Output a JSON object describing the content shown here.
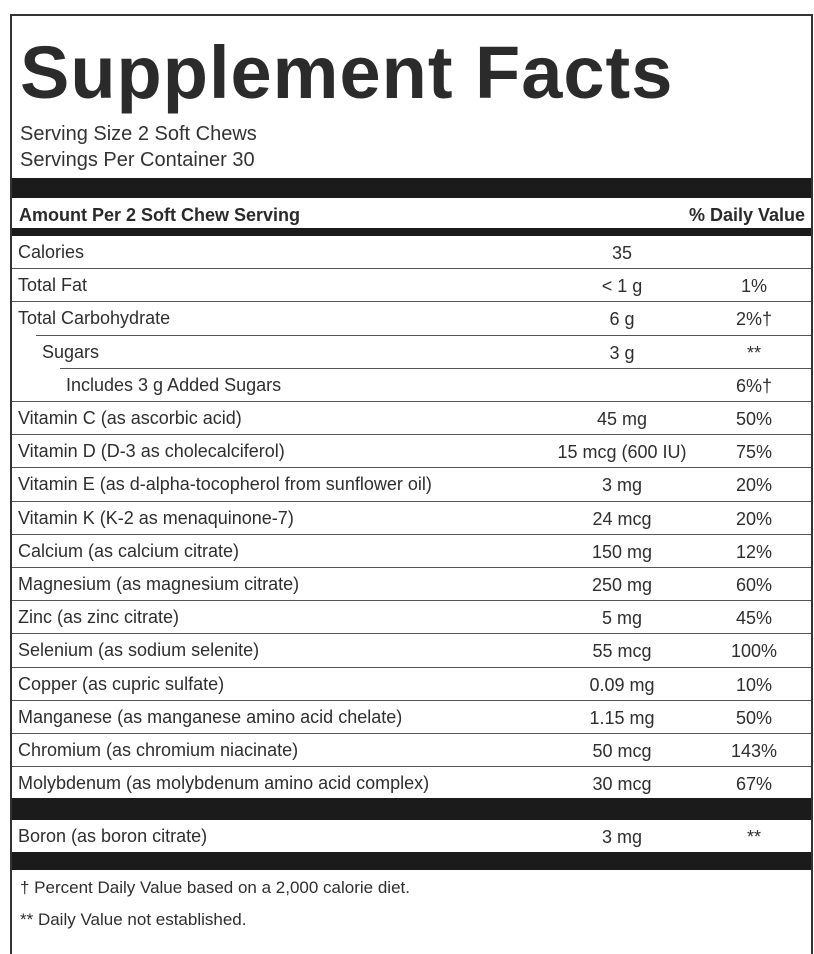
{
  "title": "Supplement Facts",
  "serving_size": "Serving Size 2 Soft Chews",
  "servings_per_container": "Servings Per Container 30",
  "header": {
    "left": "Amount Per 2 Soft Chew Serving",
    "right": "% Daily Value"
  },
  "rows": [
    {
      "name": "Calories",
      "amount": "35",
      "dv": ""
    },
    {
      "name": "Total Fat",
      "amount": "< 1 g",
      "dv": "1%"
    },
    {
      "name": "Total Carbohydrate",
      "amount": "6 g",
      "dv": "2%†"
    },
    {
      "name": "Sugars",
      "amount": "3 g",
      "dv": "**"
    },
    {
      "name": "Includes 3 g Added Sugars",
      "amount": "",
      "dv": "6%†"
    },
    {
      "name": "Vitamin C (as ascorbic acid)",
      "amount": "45 mg",
      "dv": "50%"
    },
    {
      "name": "Vitamin D (D-3 as cholecalciferol)",
      "amount": "15 mcg (600 IU)",
      "dv": "75%"
    },
    {
      "name": "Vitamin E (as d-alpha-tocopherol from sunflower oil)",
      "amount": "3 mg",
      "dv": "20%"
    },
    {
      "name": "Vitamin K (K-2 as menaquinone-7)",
      "amount": "24 mcg",
      "dv": "20%"
    },
    {
      "name": "Calcium (as calcium citrate)",
      "amount": "150 mg",
      "dv": "12%"
    },
    {
      "name": "Magnesium (as magnesium citrate)",
      "amount": "250 mg",
      "dv": "60%"
    },
    {
      "name": "Zinc (as zinc citrate)",
      "amount": "5 mg",
      "dv": "45%"
    },
    {
      "name": "Selenium (as sodium selenite)",
      "amount": "55 mcg",
      "dv": "100%"
    },
    {
      "name": "Copper (as cupric sulfate)",
      "amount": "0.09 mg",
      "dv": "10%"
    },
    {
      "name": "Manganese (as manganese amino acid chelate)",
      "amount": "1.15 mg",
      "dv": "50%"
    },
    {
      "name": "Chromium (as chromium niacinate)",
      "amount": "50 mcg",
      "dv": "143%"
    },
    {
      "name": "Molybdenum (as molybdenum amino acid complex)",
      "amount": "30 mcg",
      "dv": "67%"
    }
  ],
  "other": {
    "name": "Boron (as boron citrate)",
    "amount": "3 mg",
    "dv": "**"
  },
  "footnotes": [
    "† Percent Daily Value based on a 2,000 calorie diet.",
    "** Daily Value not established."
  ]
}
